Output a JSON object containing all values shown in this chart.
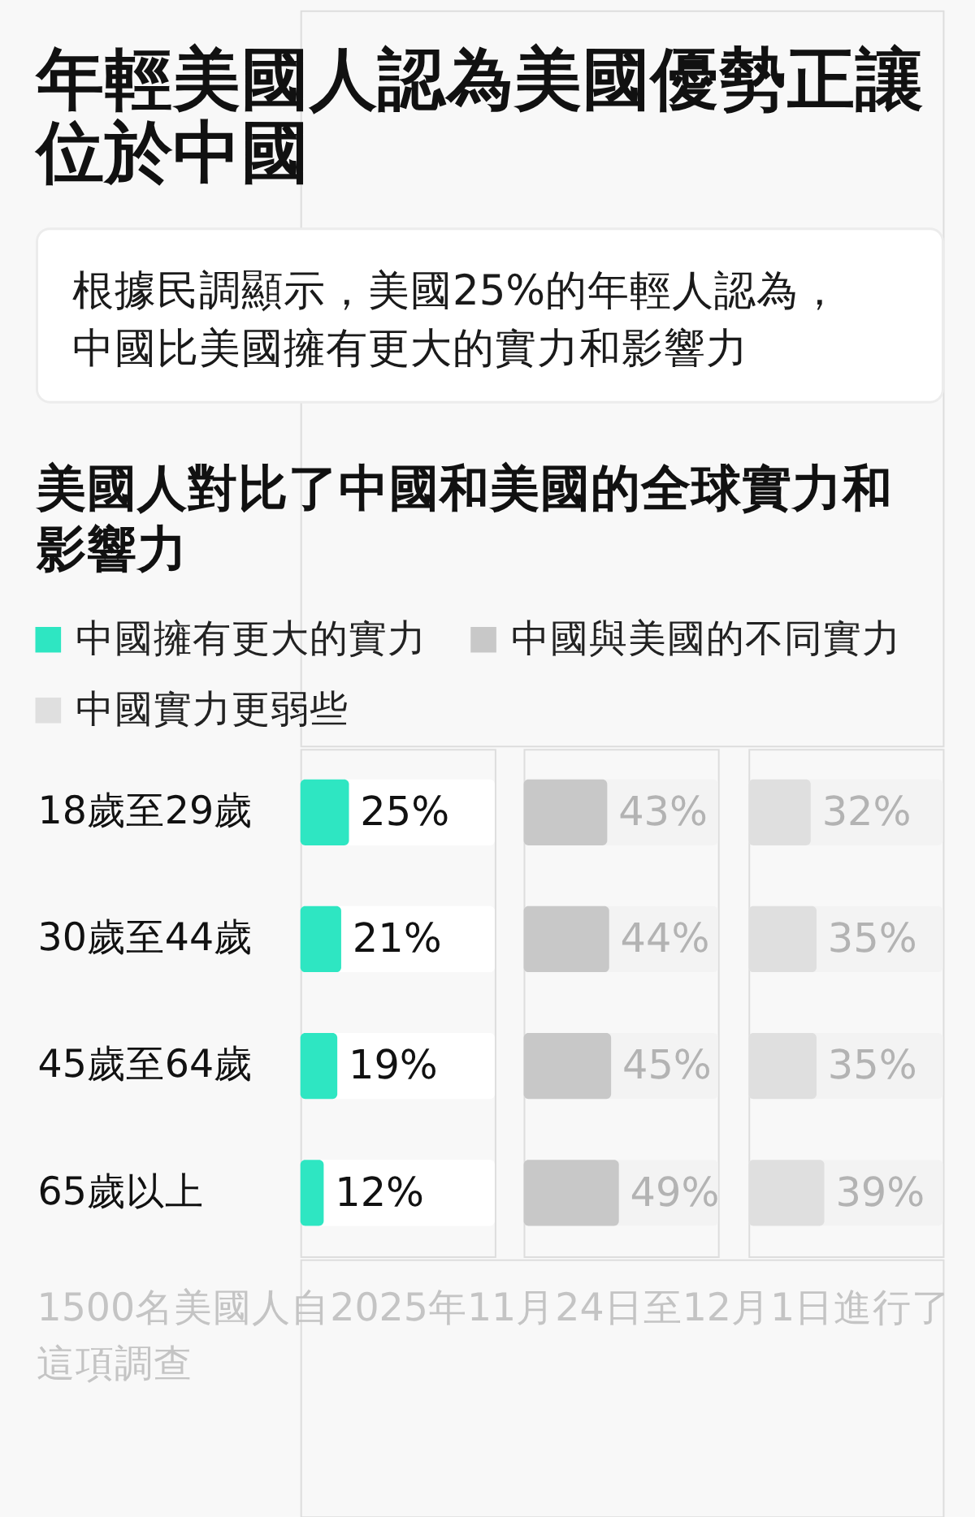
{
  "chart_data": [
    {
      "type": "bar",
      "orientation": "horizontal",
      "title": "年輕美國人認為美國優勢正讓位於中國",
      "subtitle": "根據民調顯示，美國25%的年輕人認為，中國比美國擁有更大的實力和影響力",
      "categories": [
        "18歲至29歲",
        "30歲至44歲",
        "45歲至64歲",
        "65歲以上"
      ],
      "series": [
        {
          "name": "中國擁有更大的實力",
          "color": "#2ee6c2",
          "values": [
            25,
            21,
            19,
            12
          ],
          "value_labels": [
            "25%",
            "21%",
            "19%",
            "12%"
          ]
        }
      ],
      "xlim": [
        0,
        100
      ],
      "tick_labels": "y",
      "legend": "top left",
      "annotations": [
        "美國人對比了中國和美國的全球實力和影響力",
        "1500名美國人自2025年11月24日至12月1日進行了這項調查"
      ]
    },
    {
      "type": "bar",
      "orientation": "horizontal",
      "categories": [
        null,
        null,
        null,
        null
      ],
      "series": [
        {
          "name": "中國與美國的不同實力",
          "color": "#c8c8c8",
          "values": [
            43,
            44,
            45,
            49
          ],
          "value_labels": [
            "43%",
            "44%",
            "45%",
            "49%"
          ]
        }
      ],
      "xlim": [
        0,
        100
      ],
      "tick_labels": false,
      "legend": "top right"
    },
    {
      "type": "bar",
      "orientation": "horizontal",
      "categories": [
        null,
        null,
        null,
        null
      ],
      "series": [
        {
          "name": "中國實力更弱些",
          "color": "#dfdfdf",
          "values": [
            32,
            35,
            35,
            39
          ],
          "value_labels": [
            "32%",
            "35%",
            "35%",
            "39%"
          ]
        }
      ],
      "xlim": [
        0,
        100
      ],
      "tick_labels": false,
      "legend": "top left"
    }
  ]
}
